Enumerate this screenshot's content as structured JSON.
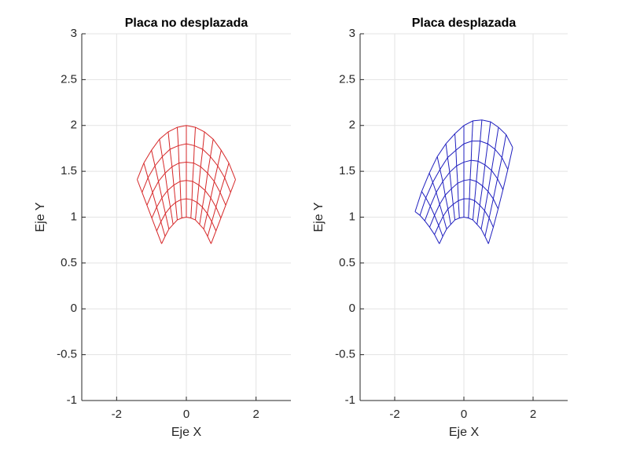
{
  "chart_data": [
    {
      "type": "mesh",
      "title": "Placa no desplazada",
      "xlabel": "Eje X",
      "ylabel": "Eje Y",
      "color": "#d62728",
      "xlim": [
        -3,
        3
      ],
      "ylim": [
        -1,
        3
      ],
      "xticks": [
        -2,
        0,
        2
      ],
      "yticks": [
        -1,
        -0.5,
        0,
        0.5,
        1,
        1.5,
        2,
        2.5,
        3
      ],
      "grid": true,
      "x": [
        [
          -0.71,
          -0.61,
          -0.5,
          -0.38,
          -0.26,
          -0.13,
          0,
          0.13,
          0.26,
          0.38,
          0.5,
          0.61,
          0.71
        ],
        [
          -0.85,
          -0.73,
          -0.6,
          -0.46,
          -0.31,
          -0.16,
          0,
          0.16,
          0.31,
          0.46,
          0.6,
          0.73,
          0.85
        ],
        [
          -0.99,
          -0.85,
          -0.7,
          -0.54,
          -0.36,
          -0.18,
          0,
          0.18,
          0.36,
          0.54,
          0.7,
          0.85,
          0.99
        ],
        [
          -1.13,
          -0.97,
          -0.8,
          -0.61,
          -0.41,
          -0.21,
          0,
          0.21,
          0.41,
          0.61,
          0.8,
          0.97,
          1.13
        ],
        [
          -1.27,
          -1.1,
          -0.9,
          -0.69,
          -0.47,
          -0.23,
          0,
          0.23,
          0.47,
          0.69,
          0.9,
          1.1,
          1.27
        ],
        [
          -1.41,
          -1.22,
          -1,
          -0.77,
          -0.52,
          -0.26,
          0,
          0.26,
          0.52,
          0.77,
          1,
          1.22,
          1.41
        ]
      ],
      "y": [
        [
          0.71,
          0.79,
          0.87,
          0.92,
          0.97,
          0.99,
          1,
          0.99,
          0.97,
          0.92,
          0.87,
          0.79,
          0.71
        ],
        [
          0.85,
          0.95,
          1.04,
          1.11,
          1.16,
          1.19,
          1.2,
          1.19,
          1.16,
          1.11,
          1.04,
          0.95,
          0.85
        ],
        [
          0.99,
          1.11,
          1.21,
          1.29,
          1.35,
          1.39,
          1.4,
          1.39,
          1.35,
          1.29,
          1.21,
          1.11,
          0.99
        ],
        [
          1.13,
          1.27,
          1.39,
          1.48,
          1.55,
          1.59,
          1.6,
          1.59,
          1.55,
          1.48,
          1.39,
          1.27,
          1.13
        ],
        [
          1.27,
          1.43,
          1.56,
          1.66,
          1.74,
          1.78,
          1.8,
          1.78,
          1.74,
          1.66,
          1.56,
          1.43,
          1.27
        ],
        [
          1.41,
          1.59,
          1.73,
          1.85,
          1.93,
          1.98,
          2,
          1.98,
          1.93,
          1.85,
          1.73,
          1.59,
          1.41
        ]
      ]
    },
    {
      "type": "mesh",
      "title": "Placa desplazada",
      "xlabel": "Eje X",
      "ylabel": "Eje Y",
      "color": "#1f1fbf",
      "xlim": [
        -3,
        3
      ],
      "ylim": [
        -1,
        3
      ],
      "xticks": [
        -2,
        0,
        2
      ],
      "yticks": [
        -1,
        -0.5,
        0,
        0.5,
        1,
        1.5,
        2,
        2.5,
        3
      ],
      "grid": true,
      "x": [
        [
          -0.71,
          -0.61,
          -0.5,
          -0.38,
          -0.26,
          -0.13,
          0,
          0.13,
          0.26,
          0.38,
          0.5,
          0.61,
          0.71
        ],
        [
          -0.85,
          -0.73,
          -0.6,
          -0.46,
          -0.31,
          -0.16,
          0,
          0.16,
          0.31,
          0.46,
          0.6,
          0.73,
          0.85
        ],
        [
          -0.99,
          -0.85,
          -0.7,
          -0.54,
          -0.36,
          -0.18,
          0,
          0.18,
          0.36,
          0.54,
          0.7,
          0.85,
          0.99
        ],
        [
          -1.13,
          -0.97,
          -0.8,
          -0.61,
          -0.41,
          -0.21,
          0,
          0.21,
          0.41,
          0.61,
          0.8,
          0.97,
          1.13
        ],
        [
          -1.27,
          -1.1,
          -0.9,
          -0.69,
          -0.47,
          -0.23,
          0,
          0.23,
          0.47,
          0.69,
          0.9,
          1.1,
          1.27
        ],
        [
          -1.41,
          -1.22,
          -1,
          -0.77,
          -0.52,
          -0.26,
          0,
          0.26,
          0.52,
          0.77,
          1,
          1.22,
          1.41
        ]
      ],
      "y": [
        [
          0.71,
          0.79,
          0.87,
          0.92,
          0.97,
          0.99,
          1,
          0.99,
          0.97,
          0.92,
          0.87,
          0.79,
          0.71
        ],
        [
          0.81,
          0.91,
          1.01,
          1.09,
          1.14,
          1.18,
          1.2,
          1.2,
          1.18,
          1.13,
          1.07,
          0.99,
          0.89
        ],
        [
          0.89,
          1.02,
          1.14,
          1.24,
          1.31,
          1.37,
          1.4,
          1.41,
          1.39,
          1.34,
          1.28,
          1.2,
          1.09
        ],
        [
          0.96,
          1.12,
          1.27,
          1.39,
          1.49,
          1.56,
          1.6,
          1.62,
          1.61,
          1.57,
          1.51,
          1.42,
          1.3
        ],
        [
          1.02,
          1.21,
          1.38,
          1.52,
          1.65,
          1.73,
          1.8,
          1.83,
          1.83,
          1.8,
          1.74,
          1.65,
          1.52
        ],
        [
          1.06,
          1.28,
          1.48,
          1.66,
          1.8,
          1.91,
          2,
          2.05,
          2.06,
          2.04,
          1.98,
          1.9,
          1.76
        ]
      ]
    }
  ]
}
